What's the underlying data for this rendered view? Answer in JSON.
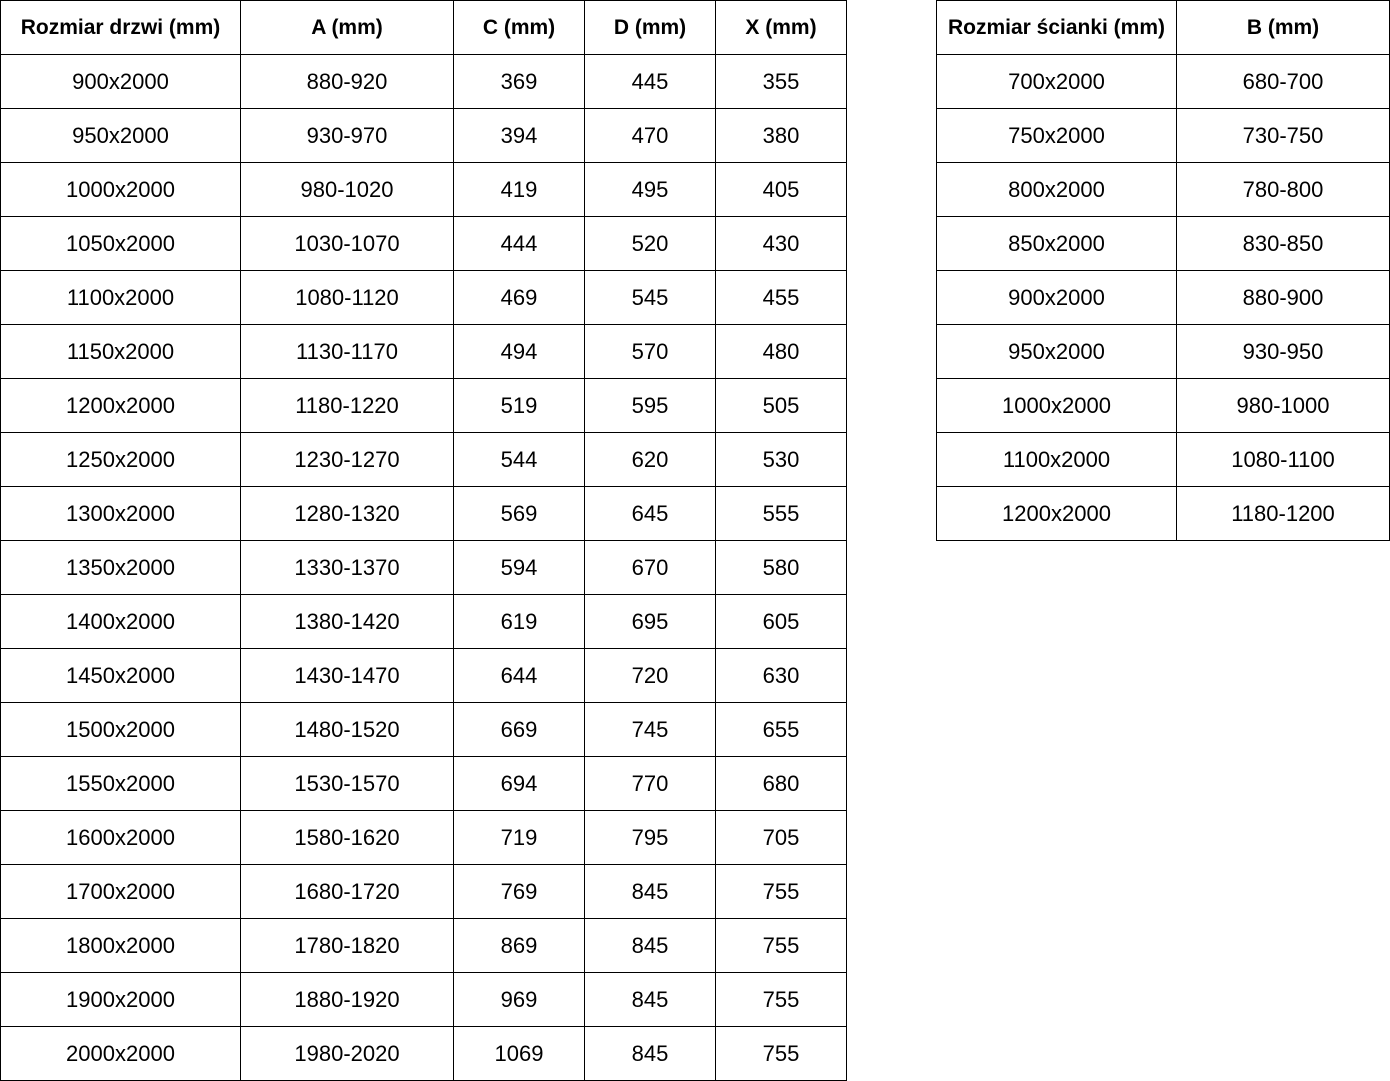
{
  "doors_table": {
    "headers": [
      "Rozmiar drzwi (mm)",
      "A (mm)",
      "C (mm)",
      "D (mm)",
      "X (mm)"
    ],
    "rows": [
      [
        "900x2000",
        "880-920",
        "369",
        "445",
        "355"
      ],
      [
        "950x2000",
        "930-970",
        "394",
        "470",
        "380"
      ],
      [
        "1000x2000",
        "980-1020",
        "419",
        "495",
        "405"
      ],
      [
        "1050x2000",
        "1030-1070",
        "444",
        "520",
        "430"
      ],
      [
        "1100x2000",
        "1080-1120",
        "469",
        "545",
        "455"
      ],
      [
        "1150x2000",
        "1130-1170",
        "494",
        "570",
        "480"
      ],
      [
        "1200x2000",
        "1180-1220",
        "519",
        "595",
        "505"
      ],
      [
        "1250x2000",
        "1230-1270",
        "544",
        "620",
        "530"
      ],
      [
        "1300x2000",
        "1280-1320",
        "569",
        "645",
        "555"
      ],
      [
        "1350x2000",
        "1330-1370",
        "594",
        "670",
        "580"
      ],
      [
        "1400x2000",
        "1380-1420",
        "619",
        "695",
        "605"
      ],
      [
        "1450x2000",
        "1430-1470",
        "644",
        "720",
        "630"
      ],
      [
        "1500x2000",
        "1480-1520",
        "669",
        "745",
        "655"
      ],
      [
        "1550x2000",
        "1530-1570",
        "694",
        "770",
        "680"
      ],
      [
        "1600x2000",
        "1580-1620",
        "719",
        "795",
        "705"
      ],
      [
        "1700x2000",
        "1680-1720",
        "769",
        "845",
        "755"
      ],
      [
        "1800x2000",
        "1780-1820",
        "869",
        "845",
        "755"
      ],
      [
        "1900x2000",
        "1880-1920",
        "969",
        "845",
        "755"
      ],
      [
        "2000x2000",
        "1980-2020",
        "1069",
        "845",
        "755"
      ]
    ]
  },
  "wall_table": {
    "headers": [
      "Rozmiar ścianki (mm)",
      "B (mm)"
    ],
    "rows": [
      [
        "700x2000",
        "680-700"
      ],
      [
        "750x2000",
        "730-750"
      ],
      [
        "800x2000",
        "780-800"
      ],
      [
        "850x2000",
        "830-850"
      ],
      [
        "900x2000",
        "880-900"
      ],
      [
        "950x2000",
        "930-950"
      ],
      [
        "1000x2000",
        "980-1000"
      ],
      [
        "1100x2000",
        "1080-1100"
      ],
      [
        "1200x2000",
        "1180-1200"
      ]
    ]
  }
}
